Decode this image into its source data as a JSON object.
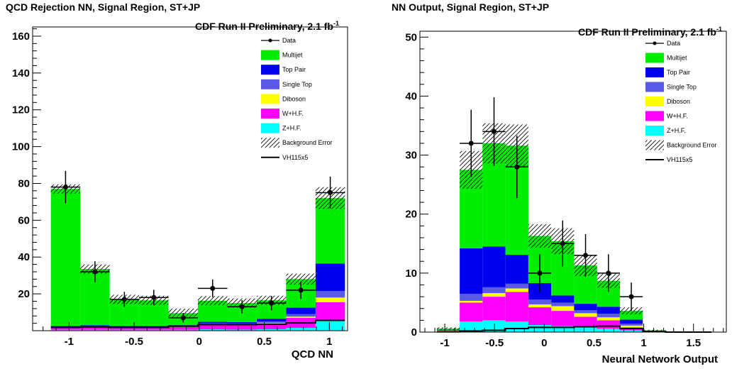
{
  "colors": {
    "multijet": "#00ee00",
    "top_pair": "#0000ee",
    "single_top": "#5a5ae6",
    "diboson": "#ffff00",
    "whf": "#ff00ff",
    "zhf": "#00ffff",
    "signal": "#000000",
    "data": "#000000"
  },
  "legend_labels": [
    "Data",
    "Multijet",
    "Top Pair",
    "Single Top",
    "Diboson",
    "W+H.F.",
    "Z+H.F.",
    "Background Error",
    "VH115x5"
  ],
  "chart_data": [
    {
      "type": "bar",
      "stacked": true,
      "title": "QCD Rejection NN, Signal Region, ST+JP",
      "annotation": "CDF Run II Preliminary, 2.1 fb",
      "annotation_sup": "-1",
      "xlabel": "QCD NN",
      "ylabel": "",
      "xlim": [
        -1.28,
        1.14
      ],
      "ylim": [
        0,
        165
      ],
      "xticks": [
        -1,
        -0.5,
        0,
        0.5,
        1
      ],
      "yticks": [
        20,
        40,
        60,
        80,
        100,
        120,
        140,
        160
      ],
      "bin_edges": [
        -1.14,
        -0.914,
        -0.688,
        -0.462,
        -0.236,
        -0.01,
        0.216,
        0.442,
        0.668,
        0.894,
        1.12
      ],
      "legend_position": "top-right",
      "series": [
        {
          "key": "zhf",
          "name": "Z+H.F.",
          "values": [
            0.5,
            0.5,
            0.5,
            0.5,
            0.5,
            0.7,
            0.6,
            0.8,
            1.5,
            5.5
          ]
        },
        {
          "key": "whf",
          "name": "W+H.F.",
          "values": [
            1.0,
            1.5,
            1.0,
            1.0,
            1.5,
            2.5,
            2.5,
            3.0,
            5.5,
            10.0
          ]
        },
        {
          "key": "diboson",
          "name": "Diboson",
          "values": [
            0.2,
            0.2,
            0.2,
            0.2,
            0.2,
            0.3,
            0.3,
            0.4,
            0.6,
            2.5
          ]
        },
        {
          "key": "single_top",
          "name": "Single Top",
          "values": [
            0.3,
            0.3,
            0.3,
            0.3,
            0.3,
            0.5,
            0.5,
            0.8,
            1.4,
            3.5
          ]
        },
        {
          "key": "top_pair",
          "name": "Top Pair",
          "values": [
            0.5,
            0.5,
            0.5,
            0.5,
            0.5,
            0.8,
            0.8,
            1.5,
            3.5,
            15.0
          ]
        },
        {
          "key": "multijet",
          "name": "Multijet",
          "values": [
            74.5,
            30.5,
            14.5,
            14.0,
            6.5,
            11.5,
            10.3,
            10.0,
            15.5,
            35.5
          ]
        }
      ],
      "bkg_error": [
        2.5,
        2.5,
        2.5,
        2.5,
        2.5,
        2.5,
        2.5,
        2.5,
        3.0,
        6.0
      ],
      "signal": [
        1.8,
        2.0,
        1.8,
        1.8,
        2.4,
        3.3,
        3.3,
        3.5,
        4.2,
        5.6
      ],
      "data": {
        "x": [
          -1.027,
          -0.801,
          -0.575,
          -0.349,
          -0.123,
          0.103,
          0.329,
          0.555,
          0.781,
          1.007
        ],
        "y": [
          78,
          32,
          17,
          18,
          7,
          23,
          13,
          15,
          22,
          75
        ],
        "err": [
          8.8,
          5.7,
          4.1,
          4.2,
          2.6,
          4.8,
          3.6,
          3.9,
          4.7,
          8.7
        ]
      }
    },
    {
      "type": "bar",
      "stacked": true,
      "title": "NN Output, Signal Region, ST+JP",
      "annotation": "CDF Run II Preliminary, 2.1 fb",
      "annotation_sup": "-1",
      "xlabel": "Neural Network Output",
      "ylabel": "",
      "xlim": [
        -1.25,
        1.83
      ],
      "ylim": [
        0,
        51
      ],
      "xticks": [
        -1,
        -0.5,
        0,
        0.5,
        1,
        1.5
      ],
      "yticks": [
        0,
        10,
        20,
        30,
        40,
        50
      ],
      "bin_edges": [
        -1.08,
        -0.85,
        -0.62,
        -0.39,
        -0.16,
        0.07,
        0.3,
        0.53,
        0.76,
        0.99,
        1.22,
        1.45,
        1.68
      ],
      "legend_position": "top-right",
      "series": [
        {
          "key": "zhf",
          "name": "Z+H.F.",
          "values": [
            0.1,
            1.8,
            2.0,
            1.8,
            1.2,
            1.0,
            0.8,
            0.6,
            0.3,
            0.05,
            0,
            0
          ]
        },
        {
          "key": "whf",
          "name": "W+H.F.",
          "values": [
            0.1,
            3.2,
            4.0,
            5.0,
            3.0,
            2.6,
            1.8,
            1.4,
            0.5,
            0.05,
            0,
            0
          ]
        },
        {
          "key": "diboson",
          "name": "Diboson",
          "values": [
            0.05,
            0.3,
            0.6,
            0.6,
            0.5,
            0.8,
            0.6,
            0.5,
            0.3,
            0.02,
            0,
            0
          ]
        },
        {
          "key": "single_top",
          "name": "Single Top",
          "values": [
            0.05,
            1.2,
            1.0,
            0.8,
            0.8,
            0.6,
            0.5,
            0.6,
            0.3,
            0.03,
            0,
            0
          ]
        },
        {
          "key": "top_pair",
          "name": "Top Pair",
          "values": [
            0.1,
            7.7,
            6.9,
            4.9,
            2.8,
            1.2,
            1.1,
            1.2,
            0.7,
            0.05,
            0,
            0
          ]
        },
        {
          "key": "multijet",
          "name": "Multijet",
          "values": [
            0.2,
            13.3,
            17.5,
            18.5,
            8.0,
            9.2,
            6.5,
            4.4,
            1.5,
            0.1,
            0,
            0
          ]
        }
      ],
      "bkg_error": [
        0.2,
        3.2,
        3.4,
        3.6,
        2.0,
        2.2,
        1.8,
        1.2,
        0.6,
        0.1,
        0,
        0
      ],
      "signal": [
        0.05,
        0.2,
        0.3,
        0.6,
        0.8,
        0.8,
        0.9,
        1.0,
        0.6,
        0.1,
        0,
        0
      ],
      "data": {
        "x": [
          -0.735,
          -0.505,
          -0.275,
          -0.045,
          0.185,
          0.415,
          0.645,
          0.875
        ],
        "y": [
          32,
          34,
          28,
          10,
          15,
          13,
          10,
          6
        ],
        "err": [
          5.7,
          5.8,
          5.3,
          3.2,
          3.9,
          3.6,
          3.2,
          2.4
        ]
      }
    }
  ]
}
